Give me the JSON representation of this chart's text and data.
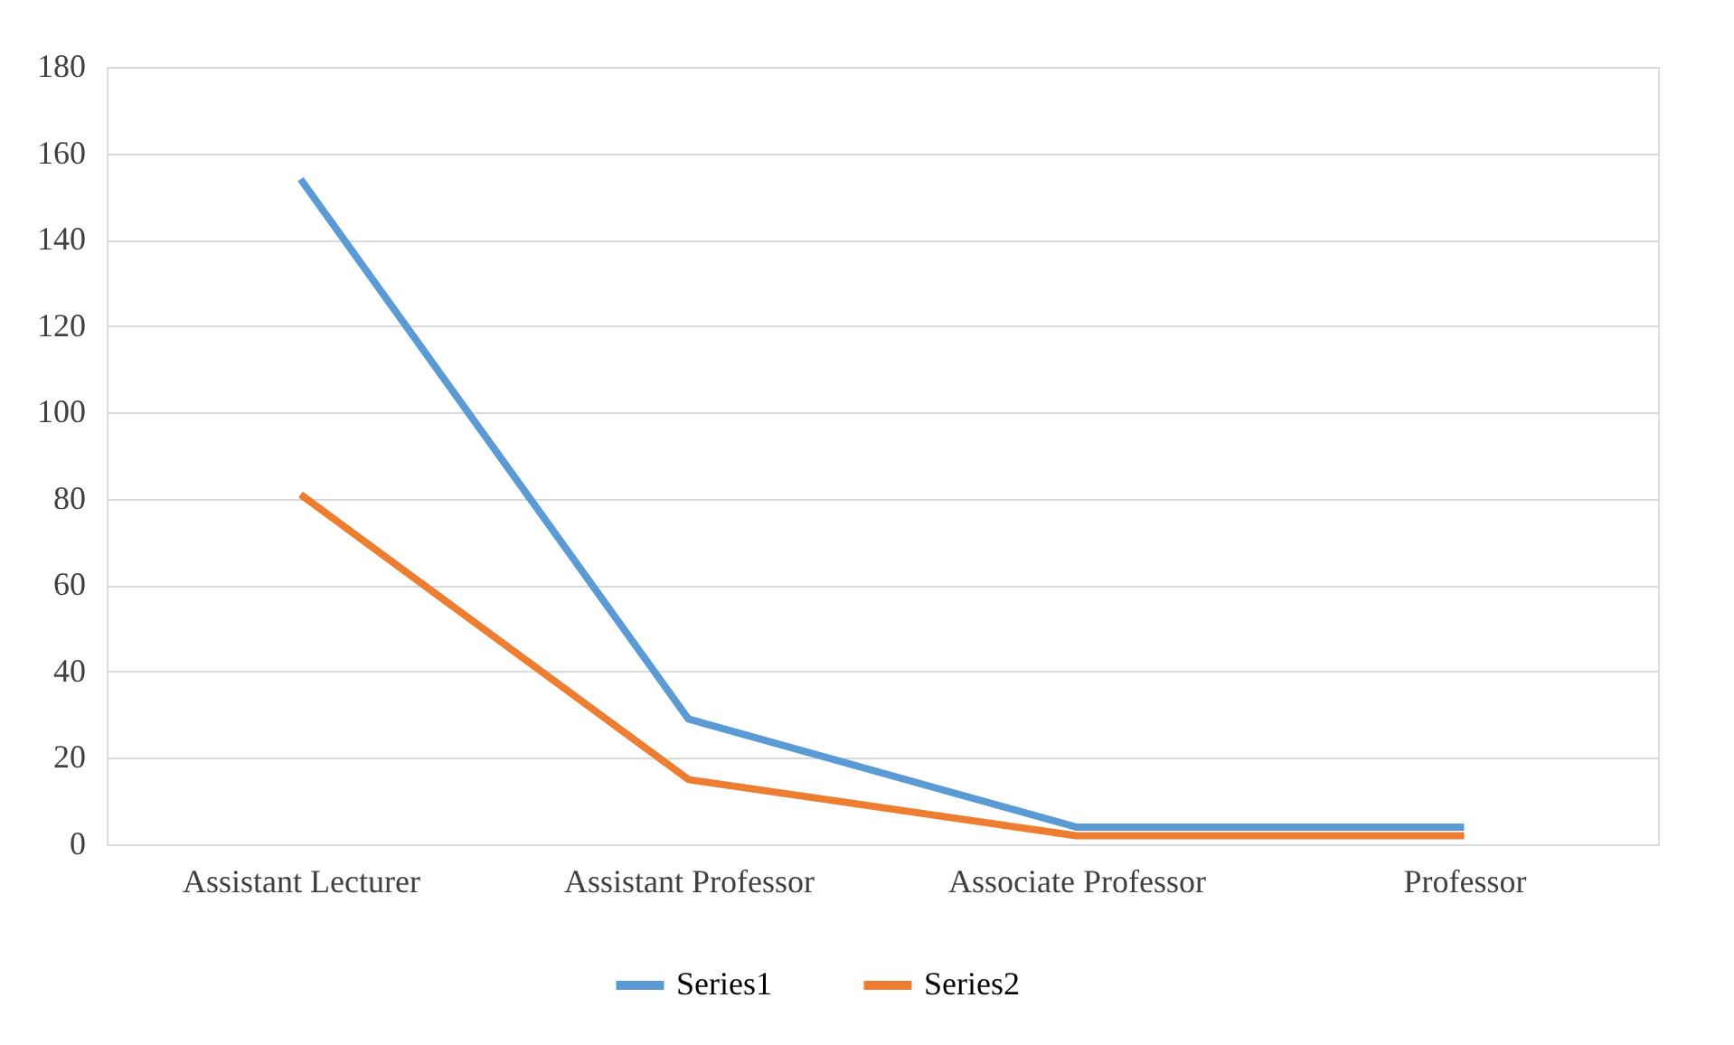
{
  "chart_data": {
    "type": "line",
    "categories": [
      "Assistant Lecturer",
      "Assistant Professor",
      "Associate Professor",
      "Professor"
    ],
    "series": [
      {
        "name": "Series1",
        "color": "#5b9bd5",
        "values": [
          154,
          29,
          4,
          4
        ]
      },
      {
        "name": "Series2",
        "color": "#ed7d31",
        "values": [
          81,
          15,
          2,
          2
        ]
      }
    ],
    "ylim": [
      0,
      180
    ],
    "yticks": [
      0,
      20,
      40,
      60,
      80,
      100,
      120,
      140,
      160,
      180
    ],
    "grid": "y",
    "legend": "bottom",
    "marker": "none",
    "line_style": "solid"
  }
}
